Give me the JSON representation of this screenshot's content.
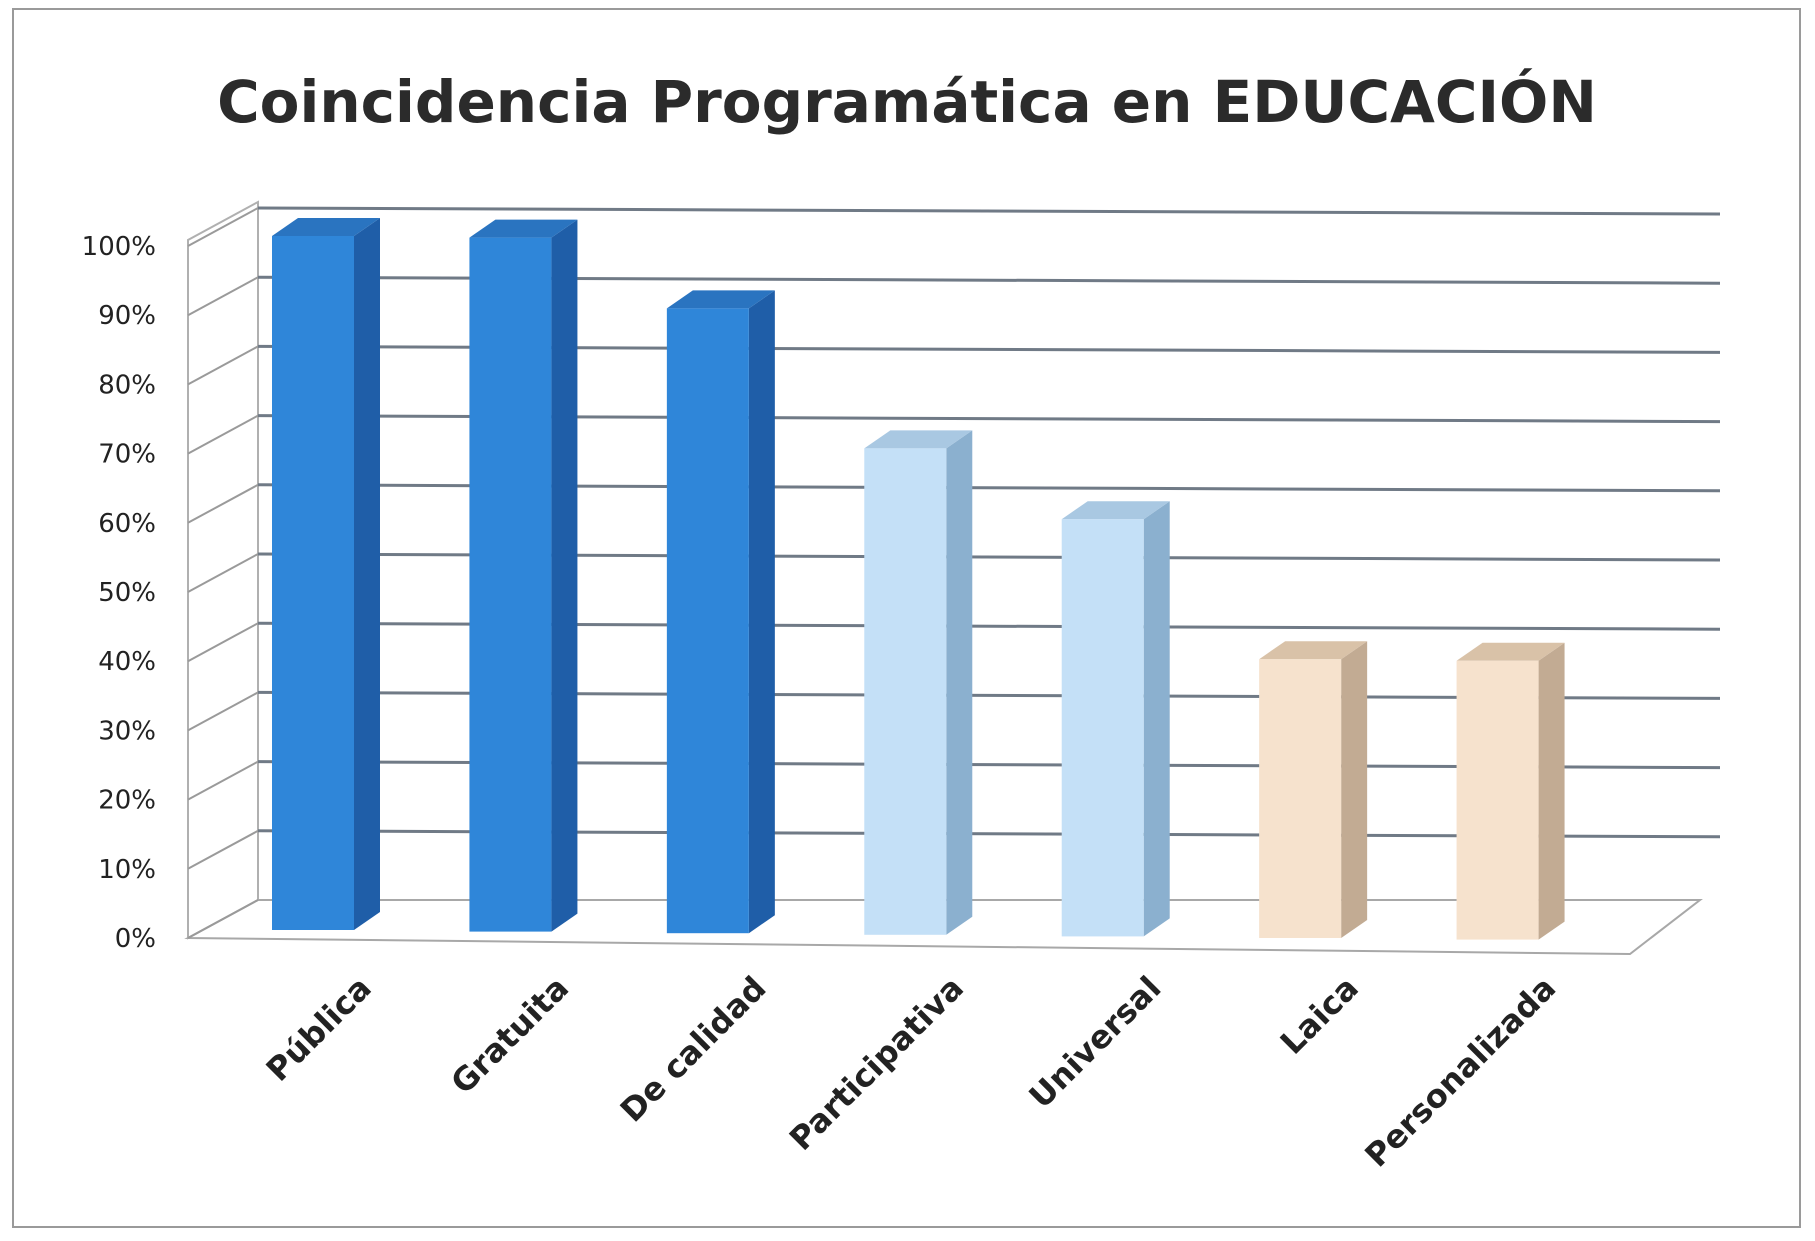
{
  "chart_data": {
    "type": "bar",
    "title": "Coincidencia Programática en EDUCACIÓN",
    "categories": [
      "Pública",
      "Gratuita",
      "De calidad",
      "Participativa",
      "Universal",
      "Laica",
      "Personalizada"
    ],
    "values": [
      100,
      100,
      90,
      70,
      60,
      40,
      40
    ],
    "yticks": [
      "0%",
      "10%",
      "20%",
      "30%",
      "40%",
      "50%",
      "60%",
      "70%",
      "80%",
      "90%",
      "100%"
    ],
    "ylim": [
      0,
      100
    ],
    "xlabel": "",
    "ylabel": "",
    "grid": true,
    "style": "3d-column",
    "colors": [
      {
        "front": "#2f86d9",
        "side": "#1f5ea8",
        "top": "#2a74c0"
      },
      {
        "front": "#2f86d9",
        "side": "#1f5ea8",
        "top": "#2a74c0"
      },
      {
        "front": "#2f86d9",
        "side": "#1f5ea8",
        "top": "#2a74c0"
      },
      {
        "front": "#c4e0f7",
        "side": "#8bb0cf",
        "top": "#a9c8e2"
      },
      {
        "front": "#c4e0f7",
        "side": "#8bb0cf",
        "top": "#a9c8e2"
      },
      {
        "front": "#f6e2cd",
        "side": "#c2ab93",
        "top": "#d9c2a8"
      },
      {
        "front": "#f6e2cd",
        "side": "#c2ab93",
        "top": "#d9c2a8"
      }
    ]
  }
}
